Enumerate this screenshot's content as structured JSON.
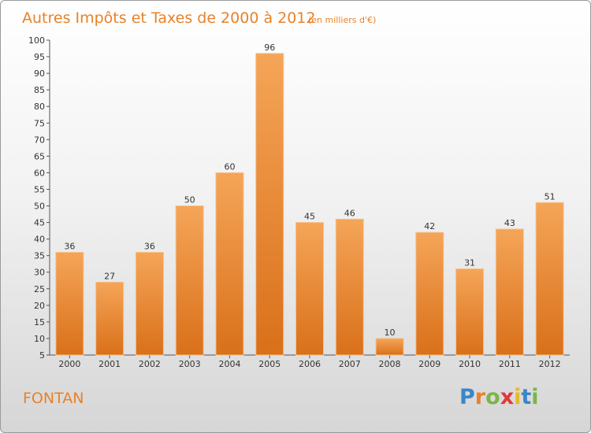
{
  "chart_data": {
    "type": "bar",
    "title": "Autres Impôts et Taxes de 2000 à 2012",
    "subtitle": "(en milliers d'€)",
    "categories": [
      "2000",
      "2001",
      "2002",
      "2003",
      "2004",
      "2005",
      "2006",
      "2007",
      "2008",
      "2009",
      "2010",
      "2011",
      "2012"
    ],
    "values": [
      36,
      27,
      36,
      50,
      60,
      96,
      45,
      46,
      10,
      42,
      31,
      43,
      51
    ],
    "ylim": [
      5,
      100
    ],
    "yticks": [
      5,
      10,
      15,
      20,
      25,
      30,
      35,
      40,
      45,
      50,
      55,
      60,
      65,
      70,
      75,
      80,
      85,
      90,
      95,
      100
    ],
    "grid": false,
    "legend": "none",
    "bar_color": "#e8822a"
  },
  "commune": "FONTAN",
  "logo": {
    "letters": [
      "P",
      "r",
      "o",
      "x",
      "i",
      "t",
      "i"
    ],
    "colors": [
      "#3a86c8",
      "#e8822a",
      "#7ab648",
      "#e03a3a",
      "#e8b828",
      "#3a86c8",
      "#7ab648"
    ]
  }
}
